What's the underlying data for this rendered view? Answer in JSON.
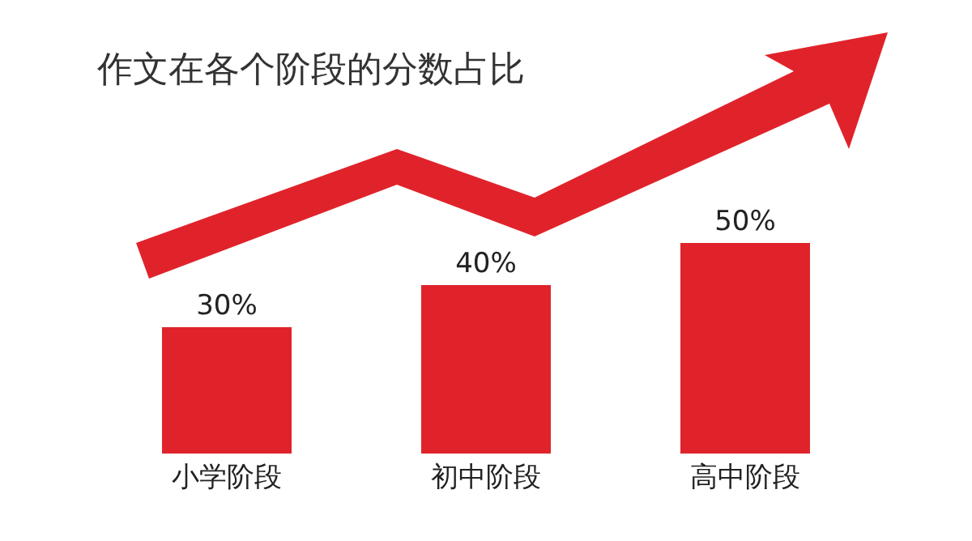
{
  "chart_data": {
    "type": "bar",
    "title": "作文在各个阶段的分数占比",
    "categories": [
      "小学阶段",
      "初中阶段",
      "高中阶段"
    ],
    "values": [
      30,
      40,
      50
    ],
    "value_labels": [
      "30%",
      "40%",
      "50%"
    ],
    "color": "#e0232b"
  }
}
